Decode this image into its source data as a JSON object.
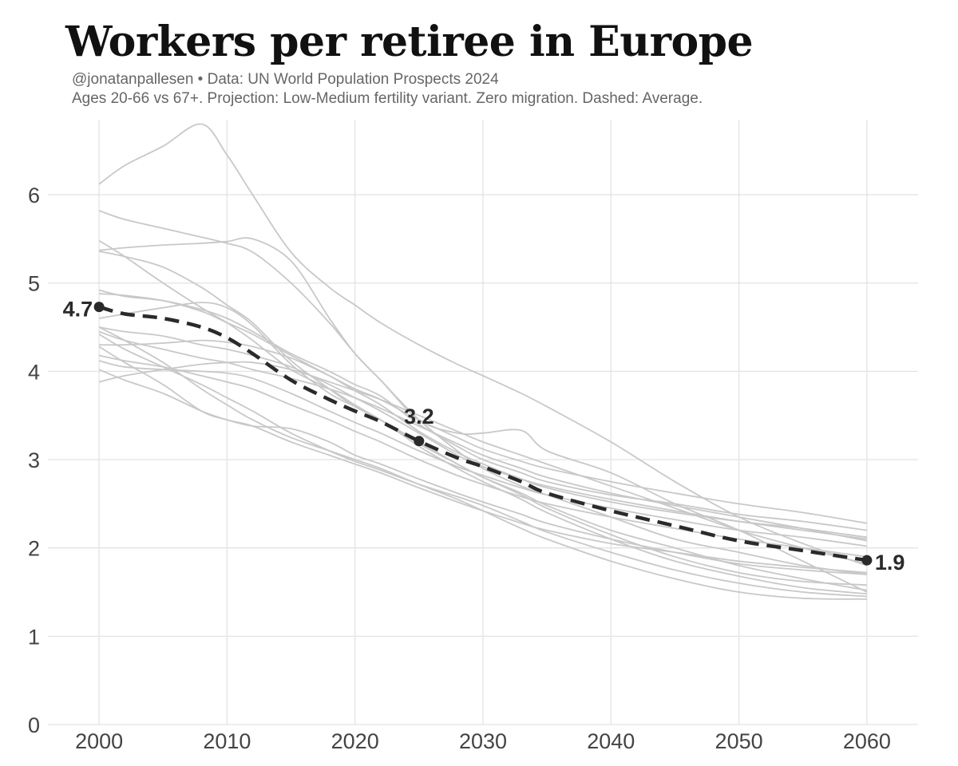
{
  "header": {
    "title": "Workers per retiree in Europe",
    "subtitle_line1": "@jonatanpallesen • Data: UN World Population Prospects 2024",
    "subtitle_line2": "Ages 20-66 vs 67+. Projection: Low-Medium fertility variant. Zero migration. Dashed: Average."
  },
  "colors": {
    "country_line": "#c8c8c8",
    "average_line": "#2a2a2a",
    "grid": "#e3e3e3",
    "background": "#ffffff"
  },
  "chart_data": {
    "type": "line",
    "title": "Workers per retiree in Europe",
    "xlabel": "",
    "ylabel": "",
    "xlim": [
      1996,
      2064
    ],
    "ylim": [
      0,
      6.85
    ],
    "x_ticks": [
      "2000",
      "2010",
      "2020",
      "2030",
      "2040",
      "2050",
      "2060"
    ],
    "y_ticks": [
      "0",
      "1",
      "2",
      "3",
      "4",
      "5",
      "6"
    ],
    "grid": true,
    "legend": "none",
    "x": [
      2000,
      2002,
      2005,
      2008,
      2010,
      2012,
      2015,
      2018,
      2020,
      2022,
      2025,
      2028,
      2030,
      2033,
      2035,
      2040,
      2045,
      2050,
      2055,
      2060
    ],
    "average": {
      "values": [
        4.73,
        4.65,
        4.6,
        4.5,
        4.38,
        4.2,
        3.9,
        3.68,
        3.55,
        3.43,
        3.21,
        3.02,
        2.92,
        2.75,
        2.62,
        2.42,
        2.25,
        2.08,
        1.97,
        1.86
      ],
      "style": "dashed"
    },
    "annotations": [
      {
        "x": 2000,
        "y": 4.73,
        "label": "4.7"
      },
      {
        "x": 2025,
        "y": 3.21,
        "label": "3.2"
      },
      {
        "x": 2060,
        "y": 1.86,
        "label": "1.9"
      }
    ],
    "series": [
      {
        "values": [
          6.12,
          6.33,
          6.55,
          6.8,
          6.45,
          6.0,
          5.35,
          4.95,
          4.75,
          4.55,
          4.3,
          4.08,
          3.95,
          3.75,
          3.6,
          3.2,
          2.75,
          2.35,
          2.05,
          1.8
        ]
      },
      {
        "values": [
          5.82,
          5.72,
          5.62,
          5.52,
          5.45,
          5.35,
          5.0,
          4.55,
          4.2,
          3.9,
          3.45,
          3.1,
          2.9,
          2.7,
          2.6,
          2.35,
          2.1,
          1.95,
          1.8,
          1.7
        ]
      },
      {
        "values": [
          5.37,
          5.4,
          5.43,
          5.45,
          5.47,
          5.5,
          5.25,
          4.6,
          4.2,
          3.9,
          3.45,
          3.3,
          3.3,
          3.33,
          3.1,
          2.85,
          2.5,
          2.2,
          1.85,
          1.5
        ]
      },
      {
        "values": [
          5.48,
          5.3,
          5.0,
          4.72,
          4.55,
          4.35,
          4.02,
          3.8,
          3.62,
          3.45,
          3.2,
          2.95,
          2.8,
          2.6,
          2.45,
          2.15,
          1.9,
          1.72,
          1.62,
          1.58
        ]
      },
      {
        "values": [
          5.36,
          5.3,
          5.18,
          4.95,
          4.75,
          4.55,
          4.12,
          3.8,
          3.6,
          3.45,
          3.18,
          2.95,
          2.8,
          2.62,
          2.48,
          2.2,
          2.0,
          1.8,
          1.65,
          1.52
        ]
      },
      {
        "values": [
          4.92,
          4.85,
          4.8,
          4.7,
          4.6,
          4.45,
          4.2,
          4.0,
          3.85,
          3.72,
          3.4,
          3.15,
          3.0,
          2.85,
          2.75,
          2.6,
          2.5,
          2.38,
          2.3,
          2.2
        ]
      },
      {
        "values": [
          4.88,
          4.86,
          4.8,
          4.68,
          4.55,
          4.42,
          4.18,
          3.95,
          3.78,
          3.62,
          3.32,
          3.08,
          2.95,
          2.78,
          2.68,
          2.52,
          2.4,
          2.3,
          2.22,
          2.12
        ]
      },
      {
        "values": [
          4.6,
          4.65,
          4.72,
          4.78,
          4.72,
          4.52,
          4.08,
          3.75,
          3.6,
          3.45,
          3.15,
          2.9,
          2.75,
          2.55,
          2.4,
          2.1,
          1.85,
          1.68,
          1.55,
          1.48
        ]
      },
      {
        "values": [
          4.5,
          4.45,
          4.4,
          4.3,
          4.25,
          4.18,
          4.05,
          3.85,
          3.7,
          3.55,
          3.3,
          3.05,
          2.92,
          2.78,
          2.7,
          2.55,
          2.42,
          2.3,
          2.2,
          2.1
        ]
      },
      {
        "values": [
          4.45,
          4.35,
          4.25,
          4.15,
          4.1,
          4.02,
          3.92,
          3.8,
          3.7,
          3.58,
          3.38,
          3.18,
          3.05,
          2.9,
          2.8,
          2.62,
          2.48,
          2.35,
          2.22,
          2.08
        ]
      },
      {
        "values": [
          4.42,
          4.25,
          4.05,
          3.85,
          3.7,
          3.55,
          3.3,
          3.1,
          2.98,
          2.88,
          2.72,
          2.58,
          2.48,
          2.3,
          2.18,
          1.95,
          1.75,
          1.6,
          1.5,
          1.45
        ]
      },
      {
        "values": [
          4.3,
          4.3,
          4.32,
          4.35,
          4.33,
          4.28,
          4.15,
          3.95,
          3.8,
          3.68,
          3.45,
          3.25,
          3.12,
          2.98,
          2.9,
          2.75,
          2.62,
          2.5,
          2.4,
          2.28
        ]
      },
      {
        "values": [
          4.28,
          4.1,
          3.85,
          3.55,
          3.45,
          3.38,
          3.35,
          3.2,
          3.05,
          2.95,
          2.78,
          2.62,
          2.52,
          2.38,
          2.28,
          2.1,
          1.95,
          1.82,
          1.75,
          1.7
        ]
      },
      {
        "values": [
          4.18,
          4.12,
          4.05,
          3.95,
          3.88,
          3.8,
          3.62,
          3.45,
          3.32,
          3.2,
          3.0,
          2.82,
          2.72,
          2.58,
          2.5,
          2.35,
          2.22,
          2.1,
          2.0,
          1.9
        ]
      },
      {
        "values": [
          4.12,
          4.05,
          4.02,
          4.0,
          3.98,
          3.92,
          3.75,
          3.55,
          3.42,
          3.3,
          3.1,
          2.92,
          2.82,
          2.68,
          2.6,
          2.45,
          2.32,
          2.2,
          2.12,
          2.02
        ]
      },
      {
        "values": [
          4.02,
          3.9,
          3.75,
          3.55,
          3.45,
          3.38,
          3.2,
          3.05,
          2.95,
          2.85,
          2.68,
          2.52,
          2.42,
          2.28,
          2.2,
          2.05,
          1.95,
          1.85,
          1.78,
          1.72
        ]
      },
      {
        "values": [
          3.88,
          3.95,
          4.02,
          4.08,
          4.1,
          4.1,
          4.02,
          3.88,
          3.78,
          3.68,
          3.5,
          3.32,
          3.2,
          3.05,
          2.95,
          2.7,
          2.45,
          2.2,
          2.0,
          1.82
        ]
      },
      {
        "values": [
          4.5,
          4.35,
          4.1,
          3.8,
          3.62,
          3.45,
          3.25,
          3.1,
          3.0,
          2.9,
          2.72,
          2.55,
          2.42,
          2.22,
          2.1,
          1.85,
          1.65,
          1.5,
          1.43,
          1.42
        ]
      }
    ]
  }
}
